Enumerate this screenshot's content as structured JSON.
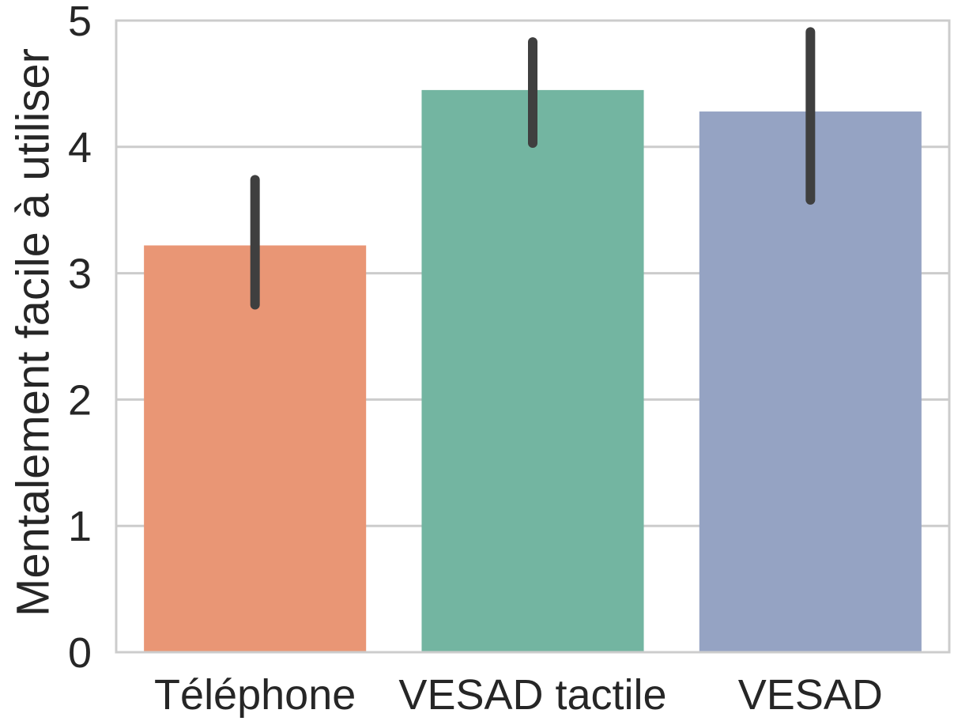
{
  "chart_data": {
    "type": "bar",
    "title": "",
    "xlabel": "",
    "ylabel": "Mentalement facile à utiliser",
    "categories": [
      "Téléphone",
      "VESAD tactile",
      "VESAD"
    ],
    "values": [
      3.22,
      4.45,
      4.28
    ],
    "error_low": [
      2.75,
      4.03,
      3.58
    ],
    "error_high": [
      3.74,
      4.83,
      4.91
    ],
    "ylim": [
      0,
      5
    ],
    "yticks": [
      "0",
      "1",
      "2",
      "3",
      "4",
      "5"
    ],
    "grid": true,
    "colors": [
      "#e99675",
      "#73b5a1",
      "#95a3c3"
    ],
    "error_color": "#3f3f3f",
    "grid_color": "#cccccc"
  }
}
